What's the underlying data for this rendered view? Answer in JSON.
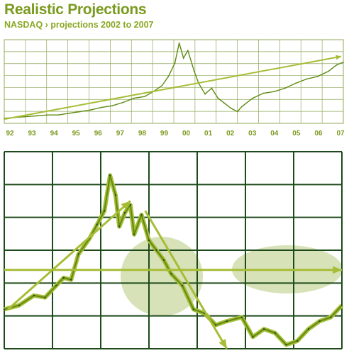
{
  "header": {
    "title": "Realistic Projections",
    "subtitle": "NASDAQ › projections 2002 to 2007"
  },
  "colors": {
    "accent": "#7a9a1e",
    "grid_light": "#8fa85a",
    "grid_dark": "#1d4a1a",
    "series_line": "#5f8a12",
    "projection": "#a7bd36",
    "highlight_fill": "#d7e2b8"
  },
  "chart_data": [
    {
      "type": "line",
      "title": "NASDAQ",
      "x_tick_labels": [
        "92",
        "93",
        "94",
        "95",
        "96",
        "97",
        "98",
        "99",
        "00",
        "01",
        "02",
        "03",
        "04",
        "05",
        "06",
        "07"
      ],
      "xlim": [
        1992,
        2007.7
      ],
      "ylim": [
        0,
        100
      ],
      "grid": true,
      "series": [
        {
          "values": [
            [
              1992.0,
              6
            ],
            [
              1992.5,
              7
            ],
            [
              1993.0,
              8
            ],
            [
              1993.5,
              9
            ],
            [
              1994.0,
              10
            ],
            [
              1994.5,
              10
            ],
            [
              1995.0,
              12
            ],
            [
              1995.5,
              14
            ],
            [
              1996.0,
              16
            ],
            [
              1996.5,
              19
            ],
            [
              1997.0,
              21
            ],
            [
              1997.5,
              25
            ],
            [
              1998.0,
              30
            ],
            [
              1998.5,
              32
            ],
            [
              1998.9,
              38
            ],
            [
              1999.3,
              45
            ],
            [
              1999.6,
              56
            ],
            [
              1999.9,
              72
            ],
            [
              2000.1,
              96
            ],
            [
              2000.3,
              78
            ],
            [
              2000.5,
              87
            ],
            [
              2000.8,
              62
            ],
            [
              2001.0,
              48
            ],
            [
              2001.3,
              35
            ],
            [
              2001.6,
              42
            ],
            [
              2001.9,
              30
            ],
            [
              2002.2,
              24
            ],
            [
              2002.5,
              18
            ],
            [
              2002.8,
              14
            ],
            [
              2003.0,
              20
            ],
            [
              2003.5,
              30
            ],
            [
              2004.0,
              36
            ],
            [
              2004.5,
              38
            ],
            [
              2005.0,
              42
            ],
            [
              2005.5,
              48
            ],
            [
              2006.0,
              53
            ],
            [
              2006.5,
              56
            ],
            [
              2007.0,
              62
            ],
            [
              2007.4,
              70
            ],
            [
              2007.7,
              73
            ]
          ]
        },
        {
          "values": [
            [
              1992.0,
              5
            ],
            [
              2007.6,
              80
            ]
          ]
        }
      ]
    },
    {
      "type": "line",
      "title": "NASDAQ projections 2002 to 2007",
      "xlim": [
        1998.5,
        2007.6
      ],
      "ylim": [
        0,
        100
      ],
      "grid": true,
      "series": [
        {
          "values": [
            [
              1998.5,
              20
            ],
            [
              1998.9,
              22
            ],
            [
              1999.3,
              27
            ],
            [
              1999.6,
              26
            ],
            [
              1999.9,
              32
            ],
            [
              2000.1,
              36
            ],
            [
              2000.3,
              35
            ],
            [
              2000.5,
              48
            ],
            [
              2000.8,
              56
            ],
            [
              2001.0,
              63
            ],
            [
              2001.2,
              70
            ],
            [
              2001.35,
              88
            ],
            [
              2001.5,
              78
            ],
            [
              2001.6,
              62
            ],
            [
              2001.75,
              69
            ],
            [
              2001.9,
              73
            ],
            [
              2002.0,
              58
            ],
            [
              2002.2,
              68
            ],
            [
              2002.4,
              55
            ],
            [
              2002.6,
              50
            ],
            [
              2002.8,
              45
            ],
            [
              2003.0,
              38
            ],
            [
              2003.3,
              32
            ],
            [
              2003.6,
              20
            ],
            [
              2003.9,
              18
            ],
            [
              2004.2,
              12
            ],
            [
              2004.5,
              14
            ],
            [
              2004.9,
              16
            ],
            [
              2005.2,
              6
            ],
            [
              2005.5,
              10
            ],
            [
              2005.8,
              8
            ],
            [
              2006.1,
              2
            ],
            [
              2006.4,
              4
            ],
            [
              2006.7,
              10
            ],
            [
              2007.0,
              14
            ],
            [
              2007.3,
              16
            ],
            [
              2007.6,
              22
            ]
          ]
        },
        {
          "values": [
            [
              1998.6,
              20
            ],
            [
              2001.9,
              75
            ]
          ]
        },
        {
          "values": [
            [
              1998.5,
              40
            ],
            [
              2007.6,
              40
            ]
          ]
        },
        {
          "values": [
            [
              2002.3,
              70
            ],
            [
              2004.5,
              0
            ]
          ]
        }
      ]
    }
  ]
}
